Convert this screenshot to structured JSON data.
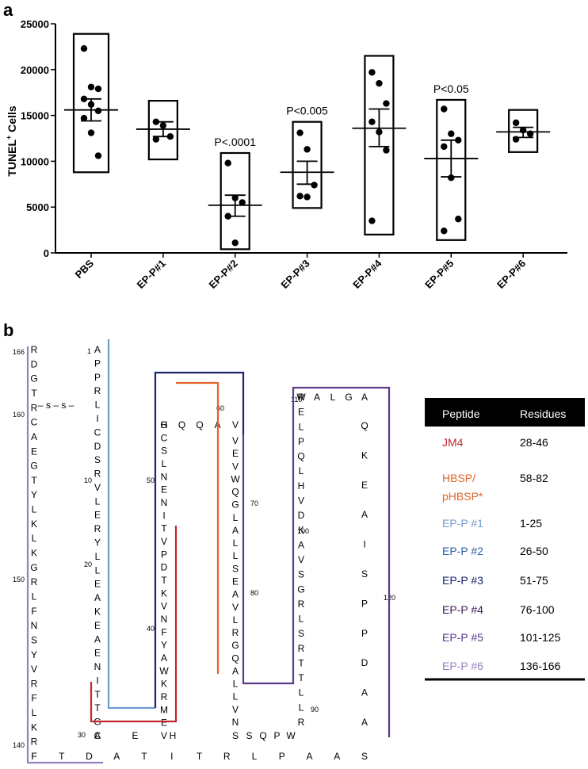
{
  "panel_a": {
    "label": "a",
    "chart_data": {
      "type": "scatter",
      "ylabel_main": "TUNEL",
      "ylabel_sup": "+",
      "ylabel_tail": " Cells",
      "ylim": [
        0,
        25000
      ],
      "yticks": [
        "0",
        "5000",
        "10000",
        "15000",
        "20000",
        "25000"
      ],
      "categories": [
        "PBS",
        "EP-P#1",
        "EP-P#2",
        "EP-P#3",
        "EP-P#4",
        "EP-P#5",
        "EP-P#6"
      ],
      "groups": [
        {
          "name": "PBS",
          "points": [
            22300,
            18100,
            17900,
            16800,
            16200,
            15500,
            14700,
            13100,
            10600
          ],
          "mean": 15600,
          "sem_low": 14400,
          "sem_high": 16800,
          "box_low": 8800,
          "box_high": 23900,
          "pval": ""
        },
        {
          "name": "EP-P#1",
          "points": [
            14300,
            13900,
            12700,
            12400
          ],
          "mean": 13500,
          "sem_low": 12700,
          "sem_high": 14300,
          "box_low": 10200,
          "box_high": 16600,
          "pval": ""
        },
        {
          "name": "EP-P#2",
          "points": [
            9800,
            6000,
            5500,
            4000,
            1100
          ],
          "mean": 5200,
          "sem_low": 4000,
          "sem_high": 6300,
          "box_low": 400,
          "box_high": 10900,
          "pval": "P<.0001"
        },
        {
          "name": "EP-P#3",
          "points": [
            13100,
            11300,
            7400,
            6200,
            6100
          ],
          "mean": 8800,
          "sem_low": 7500,
          "sem_high": 10000,
          "box_low": 4900,
          "box_high": 14300,
          "pval": "P<0.005"
        },
        {
          "name": "EP-P#4",
          "points": [
            19700,
            18500,
            16300,
            14300,
            13200,
            11200,
            3500
          ],
          "mean": 13600,
          "sem_low": 11600,
          "sem_high": 15700,
          "box_low": 2000,
          "box_high": 21500,
          "pval": ""
        },
        {
          "name": "EP-P#5",
          "points": [
            15700,
            13000,
            12300,
            11600,
            8200,
            3700,
            2400
          ],
          "mean": 10300,
          "sem_low": 8300,
          "sem_high": 12300,
          "box_low": 1400,
          "box_high": 16700,
          "pval": "P<0.05"
        },
        {
          "name": "EP-P#6",
          "points": [
            14200,
            13400,
            13000,
            12400
          ],
          "mean": 13200,
          "sem_low": 12600,
          "sem_high": 13700,
          "box_low": 11000,
          "box_high": 15600,
          "pval": ""
        }
      ]
    }
  },
  "panel_b": {
    "label": "b",
    "disulfide_label": "– s – s –",
    "colors": {
      "JM4": "#c0282c",
      "HBSP": "#e0652a",
      "EPP1": "#6f9bcc",
      "EPP2": "#2a5ea6",
      "EPP3": "#1a2470",
      "EPP4": "#3c1a5c",
      "EPP5": "#5b3a8c",
      "EPP6": "#9580bf"
    },
    "sequence": {
      "col_166_141": "RDGTRCAEGTYLKLKGRLFNSYVRFLKRF",
      "col_1_29": "APPRLICDSRVLERYLLEAKEAENITTGC",
      "row_29_31": "AEH",
      "col_32_51": "HCSLNENITVPDTKVNFYAWKRMEV",
      "row_55_59": "GQQAV",
      "col_60_84": "VEVWQGLALLSEAVLRGQALLVN",
      "row_84_89": "SSQPW",
      "col_89_110": "WELPQLHVDKAVSGRLSRTTLLR",
      "row_110_115": "RALGA",
      "col_115_125": "QKEAISPPDAA",
      "row_126_140": "FTDATITRLPAAS"
    },
    "residue_numbers": [
      "166",
      "160",
      "150",
      "140",
      "1",
      "10",
      "20",
      "30",
      "40",
      "50",
      "60",
      "70",
      "80",
      "90",
      "100",
      "110",
      "120",
      "130"
    ],
    "table": {
      "headers": [
        "Peptide",
        "Residues"
      ],
      "rows": [
        {
          "peptide": "JM4",
          "residues": "28-46",
          "color": "#c0282c"
        },
        {
          "peptide": "HBSP/ pHBSP*",
          "residues": "58-82",
          "color": "#e0652a"
        },
        {
          "peptide": "EP-P #1",
          "residues": "1-25",
          "color": "#6f9bcc"
        },
        {
          "peptide": "EP-P #2",
          "residues": "26-50",
          "color": "#2a5ea6"
        },
        {
          "peptide": "EP-P #3",
          "residues": "51-75",
          "color": "#1a2470"
        },
        {
          "peptide": "EP-P #4",
          "residues": "76-100",
          "color": "#3c1a5c"
        },
        {
          "peptide": "EP-P #5",
          "residues": "101-125",
          "color": "#5b3a8c"
        },
        {
          "peptide": "EP-P #6",
          "residues": "136-166",
          "color": "#9580bf"
        }
      ]
    }
  }
}
